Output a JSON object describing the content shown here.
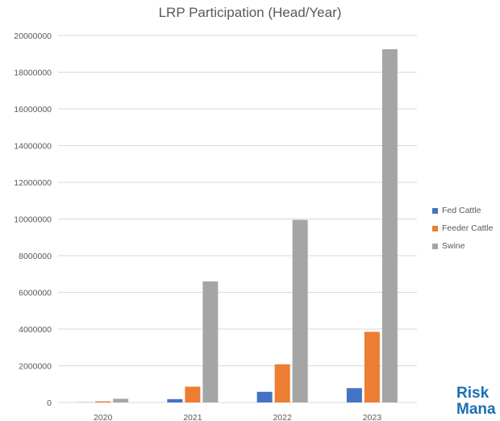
{
  "chart_data": {
    "type": "bar",
    "title": "LRP Participation (Head/Year)",
    "xlabel": "",
    "ylabel": "",
    "categories": [
      "2020",
      "2021",
      "2022",
      "2023"
    ],
    "ylim": [
      0,
      20000000
    ],
    "yticks": [
      0,
      2000000,
      4000000,
      6000000,
      8000000,
      10000000,
      12000000,
      14000000,
      16000000,
      18000000,
      20000000
    ],
    "grid": true,
    "legend_position": "right",
    "series": [
      {
        "name": "Fed Cattle",
        "color": "#4472c4",
        "values": [
          8000,
          180000,
          580000,
          780000
        ]
      },
      {
        "name": "Feeder Cattle",
        "color": "#ed7d31",
        "values": [
          60000,
          860000,
          2080000,
          3850000
        ]
      },
      {
        "name": "Swine",
        "color": "#a5a5a5",
        "values": [
          200000,
          6600000,
          9950000,
          19250000
        ]
      }
    ]
  },
  "logo": {
    "line1": "Risk",
    "line2": "Mana"
  }
}
